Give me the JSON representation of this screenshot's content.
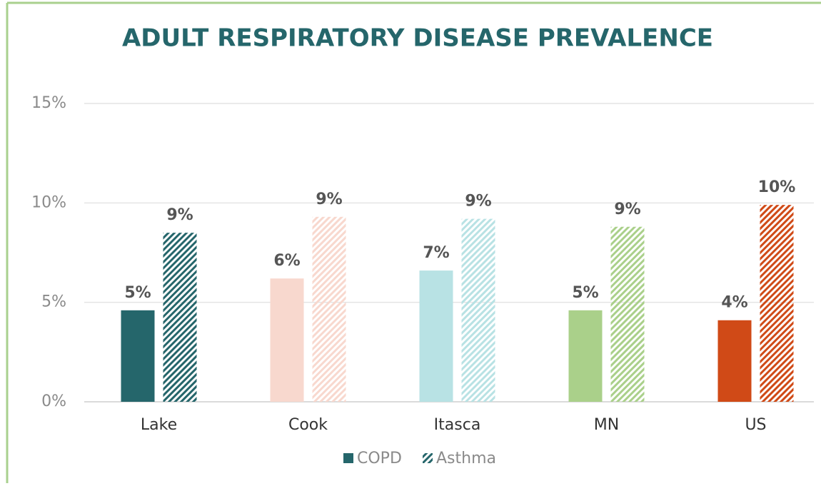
{
  "chart_data": {
    "type": "bar",
    "title": "ADULT RESPIRATORY DISEASE PREVALENCE",
    "categories": [
      "Lake",
      "Cook",
      "Itasca",
      "MN",
      "US"
    ],
    "colors": [
      "#25666b",
      "#f8d8ce",
      "#b8e2e4",
      "#aad08a",
      "#d04a17"
    ],
    "series": [
      {
        "name": "COPD",
        "color": "#25666b",
        "values": [
          4.6,
          6.2,
          6.6,
          4.6,
          4.1
        ],
        "value_labels": [
          "5%",
          "6%",
          "7%",
          "5%",
          "4%"
        ]
      },
      {
        "name": "Asthma",
        "color": "#25666b",
        "hatched": true,
        "values": [
          8.5,
          9.3,
          9.2,
          8.8,
          9.9
        ],
        "value_labels": [
          "9%",
          "9%",
          "9%",
          "9%",
          "10%"
        ]
      }
    ],
    "ylim": [
      0,
      15
    ],
    "yticks": [
      {
        "value": 0,
        "label": "0%"
      },
      {
        "value": 5,
        "label": "5%"
      },
      {
        "value": 10,
        "label": "10%"
      },
      {
        "value": 15,
        "label": "15%"
      }
    ],
    "grid": true,
    "legend": "bottom"
  }
}
